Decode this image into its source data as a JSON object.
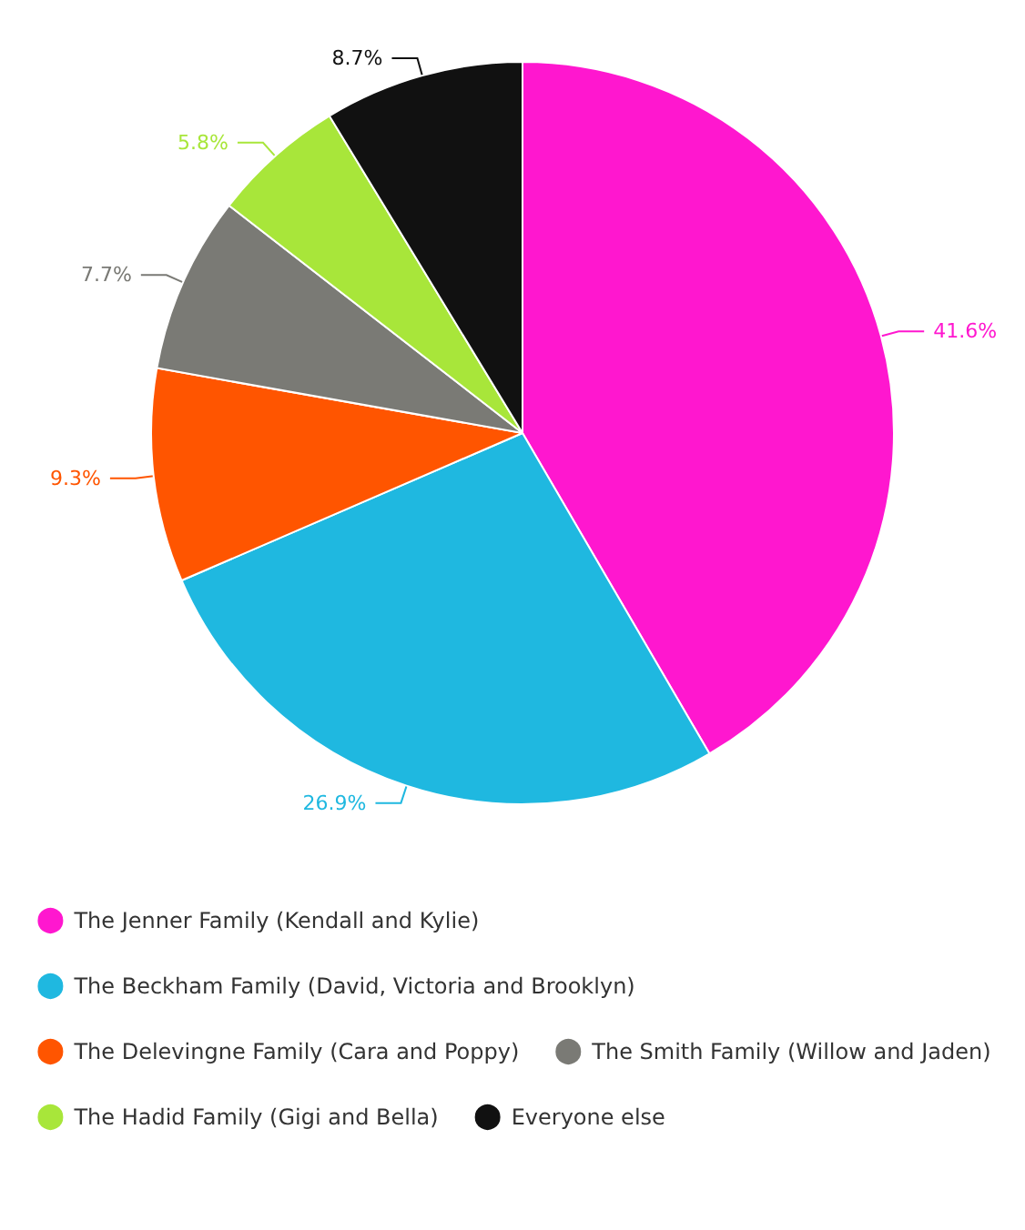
{
  "chart_data": {
    "type": "pie",
    "categories": [
      "The Jenner Family (Kendall and Kylie)",
      "The Beckham Family (David, Victoria and Brooklyn)",
      "The Delevingne Family (Cara and Poppy)",
      "The Smith Family (Willow and Jaden)",
      "The Hadid Family (Gigi and Bella)",
      "Everyone else"
    ],
    "values": [
      41.6,
      26.9,
      9.3,
      7.7,
      5.8,
      8.7
    ],
    "value_labels": [
      "41.6%",
      "26.9%",
      "9.3%",
      "7.7%",
      "5.8%",
      "8.7%"
    ],
    "colors": [
      "#ff17cf",
      "#1fb8e0",
      "#ff5500",
      "#7a7a75",
      "#a8e63a",
      "#111111"
    ],
    "legend": "bottom"
  }
}
